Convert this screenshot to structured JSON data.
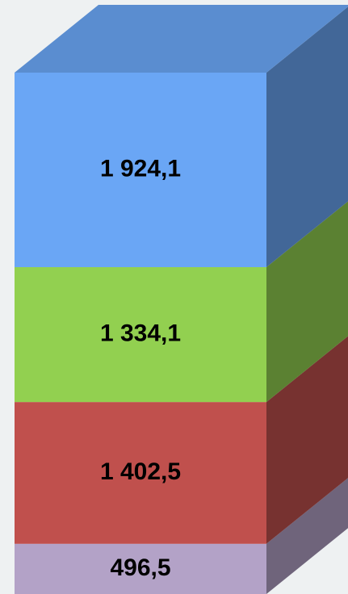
{
  "chart_data": {
    "type": "bar",
    "stacked": true,
    "series": [
      {
        "color": "#b3a2c7",
        "values": [
          496.5
        ],
        "value_labels": [
          "496,5"
        ]
      },
      {
        "color": "#c0504d",
        "values": [
          1402.5
        ],
        "value_labels": [
          "1 402,5"
        ]
      },
      {
        "color": "#92d050",
        "values": [
          1334.1
        ],
        "value_labels": [
          "1 334,1"
        ]
      },
      {
        "color": "#6aa6f5",
        "values": [
          1924.1
        ],
        "value_labels": [
          "1 924,1"
        ]
      }
    ]
  }
}
